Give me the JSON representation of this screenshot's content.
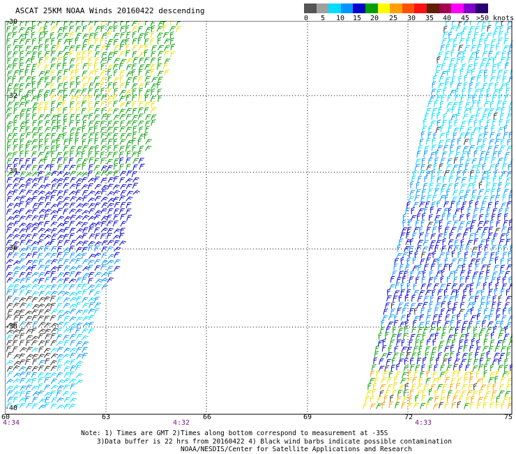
{
  "title": "ASCAT 25KM NOAA Winds 20160422 descending",
  "legend": {
    "colors": [
      "#555555",
      "#a0a0a0",
      "#00dcff",
      "#0096ff",
      "#0000cc",
      "#00a000",
      "#ffff00",
      "#ffa000",
      "#ff5000",
      "#ff1010",
      "#602000",
      "#a00050",
      "#ff00ff",
      "#8000c8",
      "#280070"
    ],
    "ticks": [
      "0",
      "5",
      "10",
      "15",
      "20",
      "25",
      "30",
      "35",
      "40",
      "45",
      ">50 knots"
    ]
  },
  "lat_labels": [
    "-30",
    "-32",
    "-34",
    "-36",
    "-38",
    "-40"
  ],
  "lon_labels": [
    "60",
    "63",
    "66",
    "69",
    "72",
    "75"
  ],
  "gmt_labels": [
    "4:34",
    "4:32",
    "4:33"
  ],
  "note": {
    "line1": "Note: 1) Times are GMT 2)Times along bottom correspond to measurement at -35S",
    "line2": "    3)Data buffer is 22 hrs from 20160422 4) Black wind barbs indicate possible contamination",
    "line3": "                         NOAA/NESDIS/Center for Satellite Applications and Research"
  },
  "swaths": [
    "western swath",
    "eastern swath"
  ]
}
